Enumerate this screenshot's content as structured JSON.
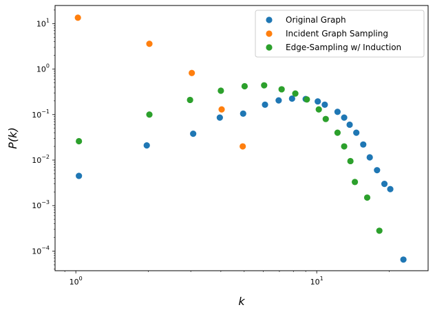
{
  "chart_data": {
    "type": "scatter",
    "title": "",
    "xlabel": "k",
    "ylabel": "P(k)",
    "xscale": "log",
    "yscale": "log",
    "xlim": [
      0.82,
      29
    ],
    "ylim": [
      3.7e-05,
      25
    ],
    "x_ticks": [
      {
        "value": 1,
        "base": "10",
        "exp": "0"
      },
      {
        "value": 10,
        "base": "10",
        "exp": "1"
      }
    ],
    "y_ticks": [
      {
        "value": 0.0001,
        "base": "10",
        "exp": "−4"
      },
      {
        "value": 0.001,
        "base": "10",
        "exp": "−3"
      },
      {
        "value": 0.01,
        "base": "10",
        "exp": "−2"
      },
      {
        "value": 0.1,
        "base": "10",
        "exp": "−1"
      },
      {
        "value": 1,
        "base": "10",
        "exp": "0"
      },
      {
        "value": 10,
        "base": "10",
        "exp": "1"
      }
    ],
    "legend_position": "top-right",
    "series": [
      {
        "name": "Original Graph",
        "color": "#1f77b4",
        "points": [
          [
            1.03,
            0.0045
          ],
          [
            1.97,
            0.021
          ],
          [
            3.07,
            0.038
          ],
          [
            3.96,
            0.086
          ],
          [
            4.95,
            0.105
          ],
          [
            6.1,
            0.165
          ],
          [
            6.95,
            0.205
          ],
          [
            7.9,
            0.225
          ],
          [
            9.0,
            0.22
          ],
          [
            10.1,
            0.195
          ],
          [
            10.8,
            0.165
          ],
          [
            12.2,
            0.115
          ],
          [
            13.0,
            0.086
          ],
          [
            13.7,
            0.06
          ],
          [
            14.6,
            0.04
          ],
          [
            15.6,
            0.022
          ],
          [
            16.6,
            0.0115
          ],
          [
            17.8,
            0.006
          ],
          [
            19.1,
            0.003
          ],
          [
            20.2,
            0.0023
          ],
          [
            22.9,
            6.5e-05
          ]
        ]
      },
      {
        "name": "Incident Graph Sampling",
        "color": "#ff7f0e",
        "points": [
          [
            1.02,
            13.5
          ],
          [
            2.02,
            3.6
          ],
          [
            3.03,
            0.82
          ],
          [
            4.03,
            0.13
          ],
          [
            4.93,
            0.02
          ]
        ]
      },
      {
        "name": "Edge-Sampling w/ Induction",
        "color": "#2ca02c",
        "points": [
          [
            1.03,
            0.026
          ],
          [
            2.02,
            0.1
          ],
          [
            2.98,
            0.21
          ],
          [
            4.0,
            0.335
          ],
          [
            5.02,
            0.42
          ],
          [
            6.05,
            0.44
          ],
          [
            7.15,
            0.36
          ],
          [
            8.15,
            0.29
          ],
          [
            9.1,
            0.215
          ],
          [
            10.2,
            0.13
          ],
          [
            10.9,
            0.08
          ],
          [
            12.2,
            0.04
          ],
          [
            13.0,
            0.02
          ],
          [
            13.8,
            0.0095
          ],
          [
            14.4,
            0.0033
          ],
          [
            16.2,
            0.0015
          ],
          [
            18.2,
            0.00028
          ]
        ]
      }
    ]
  }
}
